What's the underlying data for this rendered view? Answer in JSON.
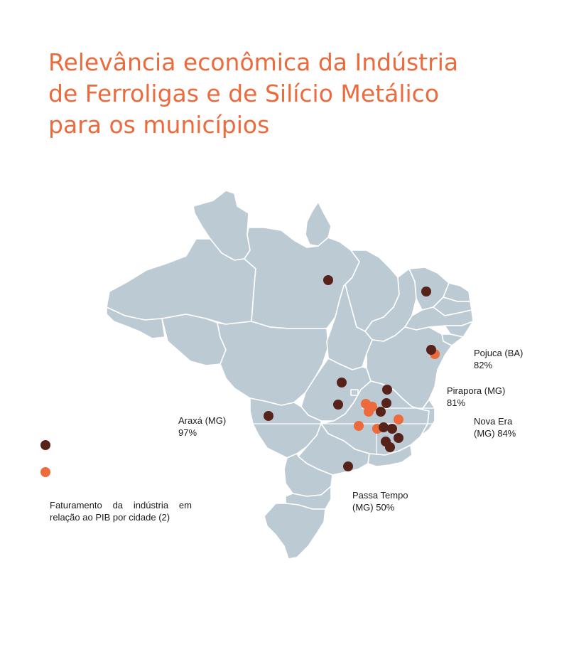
{
  "title": {
    "line1": "Relevância econômica da Indústria",
    "line2": "de Ferroligas e de Silício Metálico",
    "line3": "para os municípios"
  },
  "colors": {
    "map_fill": "#bccad4",
    "dark_dot": "#56221a",
    "orange_dot": "#ec6a3c",
    "title": "#ec6a3c"
  },
  "legend": {
    "note": "Faturamento da indústria em relação ao PIB por cidade (2)"
  },
  "callouts": {
    "pojuca": {
      "name": "Pojuca (BA)",
      "pct": "82%"
    },
    "pirapora": {
      "name": "Pirapora (MG)",
      "pct": "81%"
    },
    "nova_era": {
      "name": "Nova Era",
      "pct": "(MG) 84%"
    },
    "araxa": {
      "name": "Araxá (MG)",
      "pct": "97%"
    },
    "passa_tempo": {
      "name": "Passa Tempo",
      "pct": "(MG) 50%"
    }
  }
}
